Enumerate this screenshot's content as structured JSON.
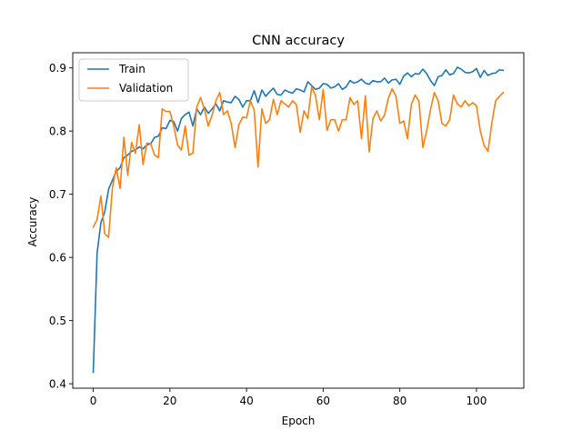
{
  "chart_data": {
    "type": "line",
    "title": "CNN accuracy",
    "xlabel": "Epoch",
    "ylabel": "Accuracy",
    "xlim": [
      -5.35,
      112.35
    ],
    "ylim": [
      0.393,
      0.924
    ],
    "xticks": [
      0,
      20,
      40,
      60,
      80,
      100
    ],
    "yticks": [
      0.4,
      0.5,
      0.6,
      0.7,
      0.8,
      0.9
    ],
    "ytick_labels": [
      "0.4",
      "0.5",
      "0.6",
      "0.7",
      "0.8",
      "0.9"
    ],
    "grid": false,
    "legend_position": "upper-left",
    "colors": {
      "Train": "#1f77b4",
      "Validation": "#ff7f0e",
      "axes": "#000000"
    },
    "series": [
      {
        "name": "Train",
        "x_start": 0,
        "values": [
          0.418,
          0.607,
          0.655,
          0.672,
          0.708,
          0.722,
          0.736,
          0.742,
          0.758,
          0.762,
          0.768,
          0.77,
          0.775,
          0.772,
          0.778,
          0.78,
          0.79,
          0.792,
          0.805,
          0.804,
          0.817,
          0.815,
          0.8,
          0.82,
          0.826,
          0.83,
          0.808,
          0.835,
          0.826,
          0.838,
          0.828,
          0.835,
          0.843,
          0.832,
          0.848,
          0.846,
          0.845,
          0.855,
          0.85,
          0.838,
          0.848,
          0.848,
          0.864,
          0.845,
          0.865,
          0.855,
          0.862,
          0.868,
          0.858,
          0.857,
          0.865,
          0.862,
          0.86,
          0.867,
          0.865,
          0.862,
          0.878,
          0.872,
          0.866,
          0.868,
          0.875,
          0.874,
          0.868,
          0.87,
          0.875,
          0.866,
          0.87,
          0.88,
          0.876,
          0.878,
          0.882,
          0.876,
          0.874,
          0.88,
          0.878,
          0.878,
          0.884,
          0.876,
          0.881,
          0.882,
          0.874,
          0.887,
          0.892,
          0.886,
          0.891,
          0.89,
          0.898,
          0.891,
          0.88,
          0.872,
          0.886,
          0.888,
          0.897,
          0.889,
          0.891,
          0.901,
          0.898,
          0.893,
          0.892,
          0.894,
          0.899,
          0.885,
          0.896,
          0.888,
          0.891,
          0.892,
          0.897,
          0.896
        ]
      },
      {
        "name": "Validation",
        "x_start": 0,
        "values": [
          0.648,
          0.66,
          0.697,
          0.637,
          0.632,
          0.71,
          0.742,
          0.709,
          0.79,
          0.73,
          0.782,
          0.765,
          0.81,
          0.747,
          0.781,
          0.78,
          0.762,
          0.758,
          0.835,
          0.831,
          0.831,
          0.808,
          0.778,
          0.77,
          0.808,
          0.762,
          0.765,
          0.838,
          0.853,
          0.835,
          0.808,
          0.825,
          0.848,
          0.861,
          0.826,
          0.832,
          0.812,
          0.774,
          0.81,
          0.822,
          0.821,
          0.848,
          0.833,
          0.743,
          0.835,
          0.812,
          0.818,
          0.85,
          0.826,
          0.848,
          0.843,
          0.838,
          0.848,
          0.842,
          0.798,
          0.832,
          0.82,
          0.87,
          0.856,
          0.818,
          0.866,
          0.801,
          0.818,
          0.818,
          0.8,
          0.818,
          0.818,
          0.853,
          0.842,
          0.848,
          0.788,
          0.856,
          0.767,
          0.82,
          0.832,
          0.816,
          0.825,
          0.852,
          0.867,
          0.855,
          0.812,
          0.816,
          0.788,
          0.842,
          0.857,
          0.847,
          0.774,
          0.8,
          0.834,
          0.861,
          0.848,
          0.812,
          0.808,
          0.818,
          0.857,
          0.843,
          0.838,
          0.848,
          0.84,
          0.845,
          0.84,
          0.8,
          0.777,
          0.768,
          0.812,
          0.848,
          0.855,
          0.861
        ]
      }
    ]
  }
}
